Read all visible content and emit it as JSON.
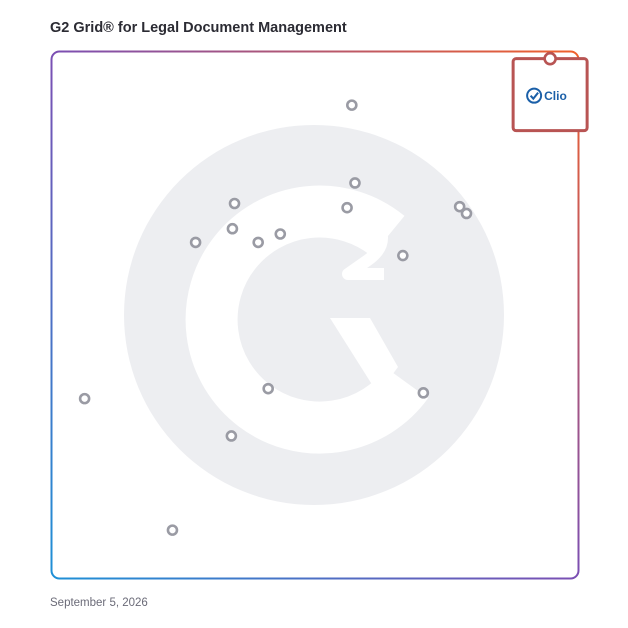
{
  "header": {
    "title": "G2 Grid® for Legal Document Management"
  },
  "footer": {
    "date": "September 5, 2026"
  },
  "highlight": {
    "label": "Clio",
    "color": "#b85453",
    "brand_color": "#1a5fa8"
  },
  "chart_data": {
    "type": "scatter",
    "title": "G2 Grid® for Legal Document Management",
    "xlabel": "",
    "ylabel": "",
    "xlim": [
      0,
      100
    ],
    "ylim": [
      0,
      100
    ],
    "grid": true,
    "quadrant_dividers": {
      "x": 50,
      "y": 50
    },
    "points": [
      {
        "x": 57.0,
        "y": 89.9
      },
      {
        "x": 57.6,
        "y": 75.1
      },
      {
        "x": 56.1,
        "y": 70.4
      },
      {
        "x": 77.5,
        "y": 70.6
      },
      {
        "x": 78.8,
        "y": 69.3
      },
      {
        "x": 66.7,
        "y": 61.3
      },
      {
        "x": 34.7,
        "y": 71.2
      },
      {
        "x": 34.3,
        "y": 66.4
      },
      {
        "x": 43.4,
        "y": 65.4
      },
      {
        "x": 39.2,
        "y": 63.8
      },
      {
        "x": 27.3,
        "y": 63.8
      },
      {
        "x": 41.1,
        "y": 36.0
      },
      {
        "x": 70.6,
        "y": 35.2
      },
      {
        "x": 6.2,
        "y": 34.1
      },
      {
        "x": 34.1,
        "y": 27.0
      },
      {
        "x": 22.9,
        "y": 9.1
      },
      {
        "x": 94.7,
        "y": 91.7,
        "label": "Clio",
        "highlighted": true
      }
    ]
  }
}
